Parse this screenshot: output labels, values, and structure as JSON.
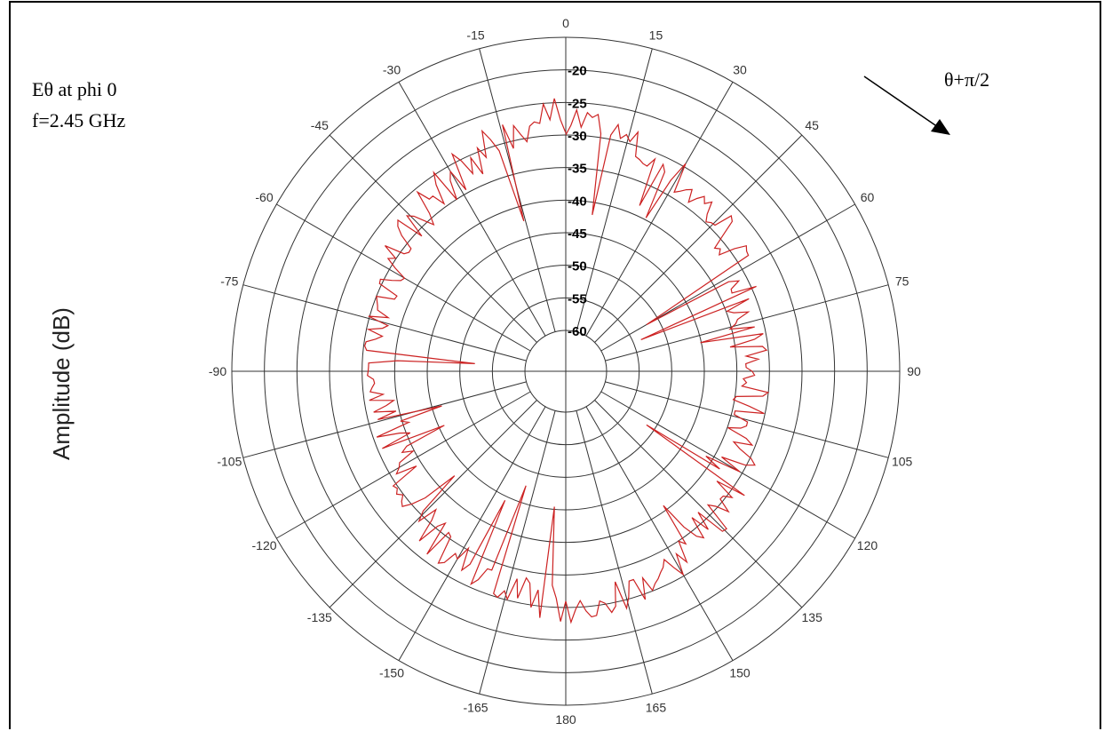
{
  "chart_data": {
    "type": "line",
    "subtype": "polar",
    "ylabel": "Amplitude (dB)",
    "annotation_lines": [
      "Eθ at phi 0",
      "f=2.45 GHz"
    ],
    "arrow_label": "θ+π/2",
    "radial_ticks": [
      "-20",
      "-25",
      "-30",
      "-35",
      "-40",
      "-45",
      "-50",
      "-55",
      "-60"
    ],
    "rlim": [
      -60,
      -20
    ],
    "angle_ticks": [
      {
        "deg": 0,
        "label": "0"
      },
      {
        "deg": 15,
        "label": "15"
      },
      {
        "deg": 30,
        "label": "30"
      },
      {
        "deg": 45,
        "label": "45"
      },
      {
        "deg": 60,
        "label": "60"
      },
      {
        "deg": 75,
        "label": "75"
      },
      {
        "deg": 90,
        "label": "90"
      },
      {
        "deg": 105,
        "label": "105"
      },
      {
        "deg": 120,
        "label": "120"
      },
      {
        "deg": 135,
        "label": "135"
      },
      {
        "deg": 150,
        "label": "150"
      },
      {
        "deg": 165,
        "label": "165"
      },
      {
        "deg": 180,
        "label": "180"
      },
      {
        "deg": -165,
        "label": "-165"
      },
      {
        "deg": -150,
        "label": "-150"
      },
      {
        "deg": -135,
        "label": "-135"
      },
      {
        "deg": -120,
        "label": "-120"
      },
      {
        "deg": -105,
        "label": "-105"
      },
      {
        "deg": -90,
        "label": "-90"
      },
      {
        "deg": -75,
        "label": "-75"
      },
      {
        "deg": -60,
        "label": "-60"
      },
      {
        "deg": -45,
        "label": "-45"
      },
      {
        "deg": -30,
        "label": "-30"
      },
      {
        "deg": -15,
        "label": "-15"
      }
    ],
    "grid": true,
    "colors": {
      "series": "#cc2222",
      "grid": "#333333"
    },
    "series": [
      {
        "theta_deg": [
          0,
          10,
          20,
          30,
          40,
          50,
          60,
          70,
          80,
          90,
          100,
          110,
          120,
          130,
          140,
          150,
          160,
          170,
          180,
          190,
          200,
          210,
          220,
          230,
          240,
          250,
          260,
          270,
          280,
          290,
          300,
          310,
          320,
          330,
          340,
          350
        ],
        "r_db": [
          -27,
          -29,
          -31,
          -32,
          -33,
          -34,
          -36,
          -37,
          -38,
          -38,
          -38,
          -37,
          -36,
          -35,
          -34,
          -33,
          -32,
          -31,
          -30,
          -31,
          -32,
          -33,
          -34,
          -35,
          -37,
          -38,
          -38,
          -38,
          -37,
          -36,
          -35,
          -34,
          -33,
          -32,
          -30,
          -28
        ]
      }
    ]
  }
}
